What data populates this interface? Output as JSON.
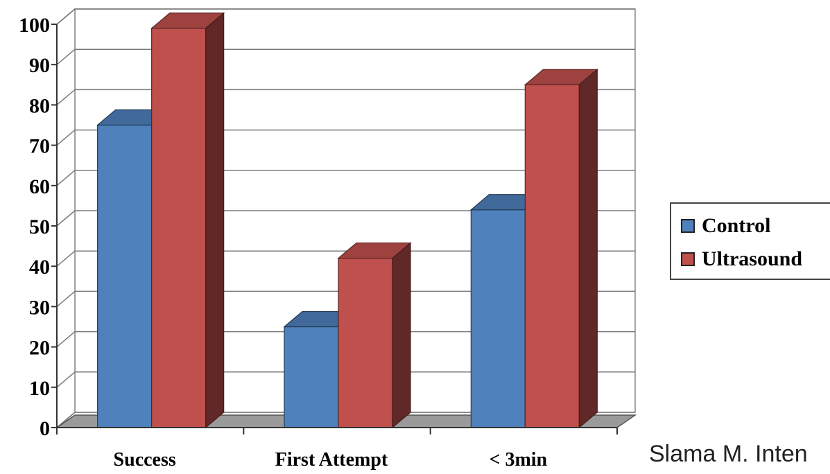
{
  "chart_data": {
    "type": "bar",
    "style": "3d-clustered-column",
    "categories": [
      "Success",
      "First Attempt",
      "< 3min"
    ],
    "series": [
      {
        "name": "Control",
        "values": [
          75,
          25,
          54
        ],
        "color": "#4f81bd"
      },
      {
        "name": "Ultrasound",
        "values": [
          99,
          42,
          85
        ],
        "color": "#c0504d"
      }
    ],
    "yticks": [
      "0",
      "10",
      "20",
      "30",
      "40",
      "50",
      "60",
      "70",
      "80",
      "90",
      "100"
    ],
    "ylim": [
      0,
      100
    ],
    "grid": true,
    "legend_position": "right",
    "title": "",
    "xlabel": "",
    "ylabel": ""
  },
  "citation": "Slama M. Inten"
}
